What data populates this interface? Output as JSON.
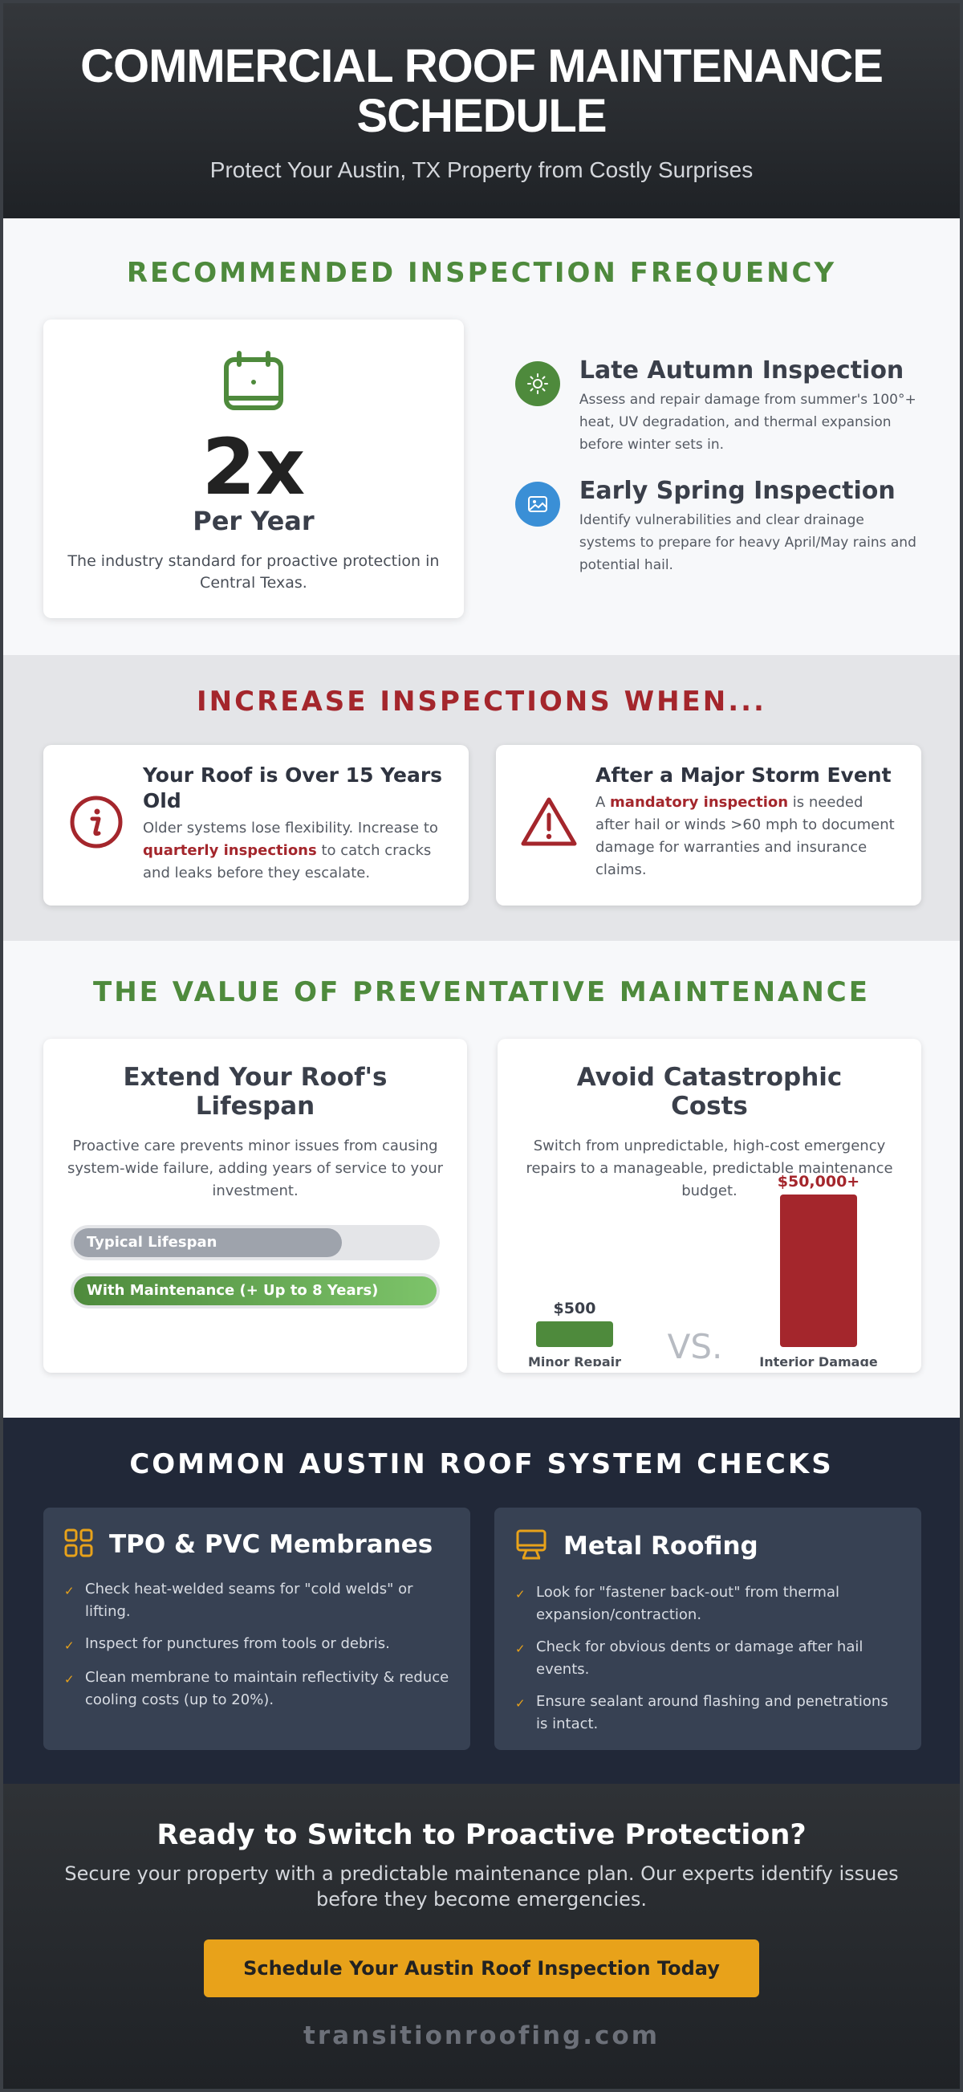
{
  "hero": {
    "title": "COMMERCIAL ROOF MAINTENANCE SCHEDULE",
    "subtitle": "Protect Your Austin, TX Property from Costly Surprises"
  },
  "frequency": {
    "heading": "RECOMMENDED INSPECTION FREQUENCY",
    "big_number": "2x",
    "big_label": "Per Year",
    "big_desc": "The industry standard for proactive protection in Central Texas.",
    "inspections": [
      {
        "title": "Late Autumn Inspection",
        "desc": "Assess and repair damage from summer's 100°+ heat, UV degradation, and thermal expansion before winter sets in.",
        "icon": "sun-icon",
        "color": "#4e8a3c"
      },
      {
        "title": "Early Spring Inspection",
        "desc": "Identify vulnerabilities and clear drainage systems to prepare for heavy April/May rains and potential hail.",
        "icon": "image-icon",
        "color": "#3a8fd6"
      }
    ]
  },
  "increase": {
    "heading": "INCREASE INSPECTIONS WHEN...",
    "cards": [
      {
        "title": "Your Roof is Over 15 Years Old",
        "desc_pre": "Older systems lose flexibility. Increase to ",
        "desc_bold": "quarterly inspections",
        "desc_post": " to catch cracks and leaks before they escalate.",
        "icon": "info-icon"
      },
      {
        "title": "After a Major Storm Event",
        "desc_pre": "A ",
        "desc_bold": "mandatory inspection",
        "desc_post": " is needed after hail or winds >60 mph to document damage for warranties and insurance claims.",
        "icon": "warning-icon"
      }
    ]
  },
  "value": {
    "heading": "THE VALUE OF PREVENTATIVE MAINTENANCE",
    "lifespan": {
      "title": "Extend Your Roof's Lifespan",
      "desc": "Proactive care prevents minor issues from causing system-wide failure, adding years of service to your investment.",
      "bars": [
        {
          "label": "Typical Lifespan",
          "fill": 0.74
        },
        {
          "label": "With Maintenance (+ Up to 8 Years)",
          "fill": 1.0
        }
      ]
    },
    "costs": {
      "title": "Avoid Catastrophic Costs",
      "desc": "Switch from unpredictable, high-cost emergency repairs to a manageable, predictable maintenance budget.",
      "vs": "VS."
    }
  },
  "chart_data": {
    "type": "bar",
    "categories": [
      "Minor Repair",
      "Interior Damage"
    ],
    "values": [
      500,
      50000
    ],
    "data_labels": [
      "$500",
      "$50,000+"
    ],
    "colors": [
      "#4e8a3c",
      "#a4262c"
    ],
    "title": "Avoid Catastrophic Costs"
  },
  "systems": {
    "heading": "COMMON AUSTIN ROOF SYSTEM CHECKS",
    "cards": [
      {
        "title": "TPO & PVC Membranes",
        "icon": "grid-icon",
        "items": [
          "Check heat-welded seams for \"cold welds\" or lifting.",
          "Inspect for punctures from tools or debris.",
          "Clean membrane to maintain reflectivity & reduce cooling costs (up to 20%)."
        ]
      },
      {
        "title": "Metal Roofing",
        "icon": "monitor-icon",
        "items": [
          "Look for \"fastener back-out\" from thermal expansion/contraction.",
          "Check for obvious dents or damage after hail events.",
          "Ensure sealant around flashing and penetrations is intact."
        ]
      }
    ]
  },
  "cta": {
    "title": "Ready to Switch to Proactive Protection?",
    "desc": "Secure your property with a predictable maintenance plan. Our experts identify issues before they become emergencies.",
    "button": "Schedule Your Austin Roof Inspection Today",
    "site": "transitionroofing.com"
  }
}
